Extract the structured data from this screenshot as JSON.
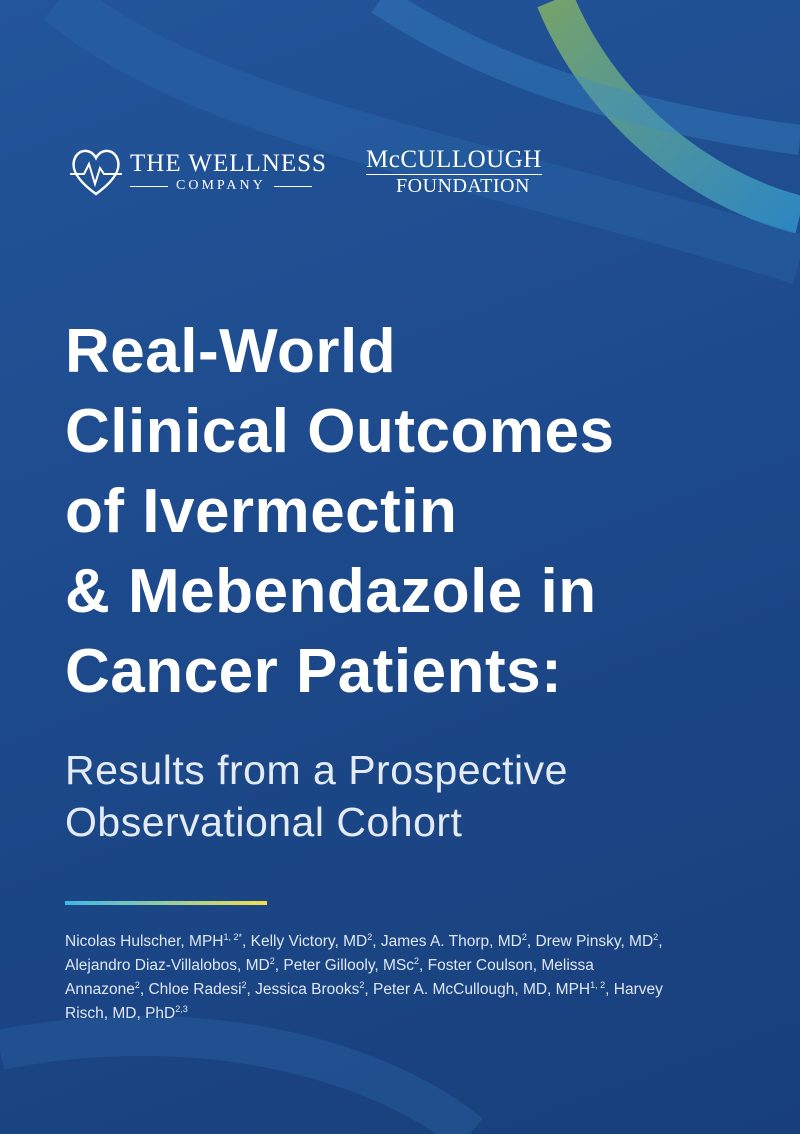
{
  "logos": {
    "wellness": {
      "line1": "THE WELLNESS",
      "line2": "COMPANY"
    },
    "mccullough": {
      "line1": "McCULLOUGH",
      "line2": "FOUNDATION"
    }
  },
  "title": {
    "lines": [
      "Real-World",
      "Clinical Outcomes",
      "of Ivermectin",
      "& Mebendazole in",
      "Cancer Patients:"
    ]
  },
  "subtitle": {
    "lines": [
      "Results from a Prospective",
      "Observational Cohort"
    ]
  },
  "authors": {
    "separator": ", ",
    "list": [
      {
        "name": "Nicolas Hulscher, MPH",
        "sup": "1, 2*"
      },
      {
        "name": "Kelly Victory, MD",
        "sup": "2"
      },
      {
        "name": "James A. Thorp, MD",
        "sup": "2"
      },
      {
        "name": "Drew Pinsky, MD",
        "sup": "2"
      },
      {
        "name": "Alejandro Diaz-Villalobos, MD",
        "sup": "2"
      },
      {
        "name": "Peter Gillooly, MSc",
        "sup": "2"
      },
      {
        "name": "Foster Coulson, Melissa Annazone",
        "sup": "2"
      },
      {
        "name": "Chloe Radesi",
        "sup": "2"
      },
      {
        "name": "Jessica Brooks",
        "sup": "2"
      },
      {
        "name": "Peter A. McCullough, MD, MPH",
        "sup": "1, 2"
      },
      {
        "name": "Harvey Risch, MD, PhD",
        "sup": "2,3"
      }
    ]
  }
}
